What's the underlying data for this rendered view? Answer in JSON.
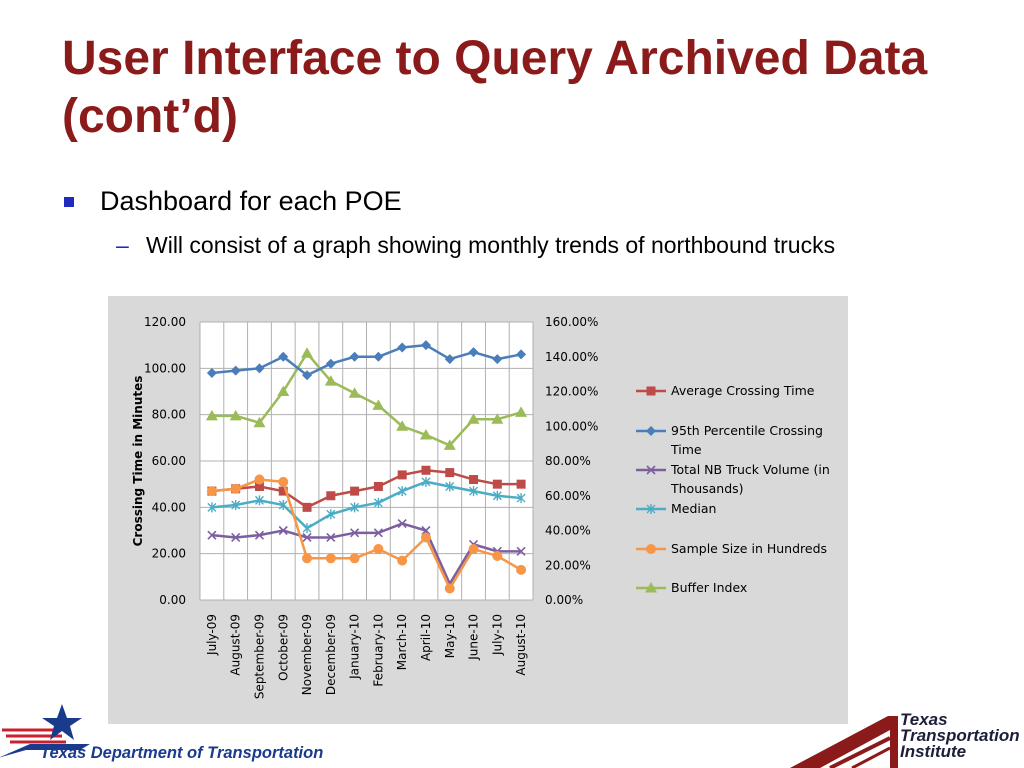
{
  "slide": {
    "title": "User Interface to Query Archived Data (cont’d)",
    "bullet": "Dashboard for each POE",
    "subbullet_dash": "–",
    "subbullet": "Will consist of a graph showing monthly trends of northbound trucks"
  },
  "chart_data": {
    "type": "line",
    "categories": [
      "July-09",
      "August-09",
      "September-09",
      "October-09",
      "November-09",
      "December-09",
      "January-10",
      "February-10",
      "March-10",
      "April-10",
      "May-10",
      "June-10",
      "July-10",
      "August-10"
    ],
    "ylabel": "Crossing Time in Minutes",
    "ylim": [
      0,
      120
    ],
    "y_ticks": [
      "0.00",
      "20.00",
      "40.00",
      "60.00",
      "80.00",
      "100.00",
      "120.00"
    ],
    "y2lim": [
      0,
      160
    ],
    "y2_ticks": [
      "0.00%",
      "20.00%",
      "40.00%",
      "60.00%",
      "80.00%",
      "100.00%",
      "120.00%",
      "140.00%",
      "160.00%"
    ],
    "grid": true,
    "legend_position": "right",
    "series": [
      {
        "name": "Average Crossing Time",
        "color": "#be4b48",
        "marker": "square",
        "axis": "left",
        "values": [
          47,
          48,
          49,
          47,
          40,
          45,
          47,
          49,
          54,
          56,
          55,
          52,
          50,
          50
        ]
      },
      {
        "name": "95th Percentile Crossing Time",
        "color": "#4a7ebb",
        "marker": "diamond",
        "axis": "left",
        "values": [
          98,
          99,
          100,
          105,
          97,
          102,
          105,
          105,
          109,
          110,
          104,
          107,
          104,
          106
        ]
      },
      {
        "name": "Total NB Truck Volume (in Thousands)",
        "color": "#7d5fa0",
        "marker": "x",
        "axis": "left",
        "values": [
          28,
          27,
          28,
          30,
          27,
          27,
          29,
          29,
          33,
          30,
          7,
          24,
          21,
          21
        ]
      },
      {
        "name": "Median",
        "color": "#4bacc6",
        "marker": "star",
        "axis": "left",
        "values": [
          40,
          41,
          43,
          41,
          31,
          37,
          40,
          42,
          47,
          51,
          49,
          47,
          45,
          44
        ]
      },
      {
        "name": "Sample Size in Hundreds",
        "color": "#f79646",
        "marker": "circle",
        "axis": "left",
        "values": [
          47,
          48,
          52,
          51,
          18,
          18,
          18,
          22,
          17,
          27,
          5,
          22,
          19,
          13
        ]
      },
      {
        "name": "Buffer Index",
        "color": "#9bbb59",
        "marker": "triangle",
        "axis": "right",
        "values": [
          106,
          106,
          102,
          120,
          142,
          126,
          119,
          112,
          100,
          95,
          89,
          104,
          104,
          108
        ]
      }
    ]
  },
  "footer": {
    "left_org": "Texas Department of Transportation",
    "right_org_line1": "Texas",
    "right_org_line2": "Transportation",
    "right_org_line3": "Institute"
  },
  "colors": {
    "title": "#8b1a1a",
    "bullet_marker": "#1f2bbf",
    "chart_background": "#d9d9d9",
    "plot_background": "#ffffff"
  },
  "icons": {
    "left_logo": "star-flag-logo",
    "right_logo": "highway-logo"
  }
}
